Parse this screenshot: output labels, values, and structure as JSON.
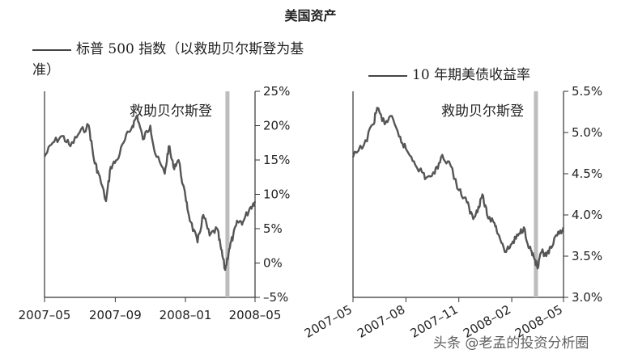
{
  "page_title": "美国资产",
  "watermark": "头条 @老孟的投资分析圈",
  "chart_data": [
    {
      "type": "line",
      "legend": "标普 500 指数（以救助贝尔斯登为基准）",
      "annotation": "救助贝尔斯登",
      "x_ticks": [
        "2007–05",
        "2007–09",
        "2008–01",
        "2008–05"
      ],
      "y_ticks": [
        "25%",
        "20%",
        "15%",
        "10%",
        "5%",
        "0%",
        "–5%"
      ],
      "ylim": [
        -5,
        25
      ],
      "event_date": "2008-03-14",
      "series": [
        {
          "x": [
            "2007-05-01",
            "2007-05-15",
            "2007-06-01",
            "2007-06-15",
            "2007-07-01",
            "2007-07-17",
            "2007-07-26",
            "2007-08-03",
            "2007-08-16",
            "2007-08-24",
            "2007-09-04",
            "2007-09-18",
            "2007-10-01",
            "2007-10-09",
            "2007-10-19",
            "2007-11-01",
            "2007-11-09",
            "2007-11-26",
            "2007-12-03",
            "2007-12-11",
            "2007-12-20",
            "2008-01-02",
            "2008-01-10",
            "2008-01-22",
            "2008-02-01",
            "2008-02-12",
            "2008-02-25",
            "2008-03-03",
            "2008-03-10",
            "2008-03-17",
            "2008-03-24",
            "2008-04-01",
            "2008-04-10",
            "2008-04-22",
            "2008-05-01"
          ],
          "values": [
            15.5,
            17.5,
            18.5,
            17,
            19,
            20,
            15,
            13,
            9,
            14,
            15,
            18,
            20,
            21.5,
            18,
            20,
            16,
            13,
            17,
            14,
            15,
            9,
            6,
            3,
            7,
            4,
            5,
            2,
            -1,
            2,
            4,
            6,
            6,
            8,
            9
          ]
        }
      ]
    },
    {
      "type": "line",
      "legend": "10 年期美债收益率",
      "annotation": "救助贝尔斯登",
      "x_ticks": [
        "2007–05",
        "2007–08",
        "2007–11",
        "2008–02",
        "2008–05"
      ],
      "y_ticks": [
        "5.5%",
        "5.0%",
        "4.5%",
        "4.0%",
        "3.5%",
        "3.0%"
      ],
      "ylim": [
        3.0,
        5.5
      ],
      "event_date": "2008-03-14",
      "series": [
        {
          "x": [
            "2007-05-01",
            "2007-05-20",
            "2007-06-05",
            "2007-06-12",
            "2007-06-25",
            "2007-07-05",
            "2007-07-20",
            "2007-08-01",
            "2007-08-15",
            "2007-08-25",
            "2007-09-05",
            "2007-09-20",
            "2007-10-01",
            "2007-10-15",
            "2007-11-01",
            "2007-11-15",
            "2007-11-26",
            "2007-12-05",
            "2007-12-12",
            "2007-12-20",
            "2008-01-02",
            "2008-01-10",
            "2008-01-22",
            "2008-02-01",
            "2008-02-12",
            "2008-02-22",
            "2008-03-03",
            "2008-03-10",
            "2008-03-17",
            "2008-03-24",
            "2008-04-01",
            "2008-04-10",
            "2008-04-20",
            "2008-05-01"
          ],
          "values": [
            4.7,
            4.85,
            5.1,
            5.3,
            5.1,
            5.2,
            4.95,
            4.8,
            4.65,
            4.55,
            4.45,
            4.5,
            4.7,
            4.65,
            4.3,
            4.15,
            3.95,
            4.1,
            4.25,
            4.0,
            3.9,
            3.75,
            3.55,
            3.65,
            3.75,
            3.85,
            3.6,
            3.5,
            3.35,
            3.55,
            3.5,
            3.6,
            3.75,
            3.85
          ]
        }
      ]
    }
  ]
}
